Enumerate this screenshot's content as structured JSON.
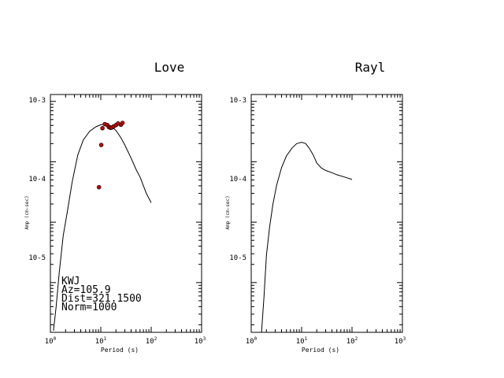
{
  "chart_data": [
    {
      "type": "line",
      "title": "Love",
      "xlabel": "Period (s)",
      "ylabel": "Amp (cm-sec)",
      "xscale": "log",
      "yscale": "log",
      "xlim": [
        1,
        1000
      ],
      "ylim": [
        1.5e-07,
        0.0013
      ],
      "xticks": [
        {
          "base": "10",
          "exp": "0"
        },
        {
          "base": "10",
          "exp": "1"
        },
        {
          "base": "10",
          "exp": "2"
        },
        {
          "base": "10",
          "exp": "3"
        }
      ],
      "yticks": [
        {
          "label": "10-3",
          "value": 0.001
        },
        {
          "label": "10-4",
          "value": 0.0001
        },
        {
          "label": "10-5",
          "value": 1e-05
        }
      ],
      "curve": {
        "x": [
          1.15,
          1.3,
          1.5,
          1.8,
          2.2,
          2.7,
          3.5,
          4.5,
          6,
          8,
          10,
          12,
          14,
          16,
          20,
          25,
          30,
          40,
          50,
          60,
          70,
          80,
          100
        ],
        "y": [
          1.6e-07,
          4e-07,
          1.5e-06,
          6e-06,
          1.6e-05,
          4.6e-05,
          0.00013,
          0.00023,
          0.00032,
          0.00038,
          0.00041,
          0.00042,
          0.00041,
          0.00039,
          0.00033,
          0.00025,
          0.00019,
          0.000115,
          7.5e-05,
          5.6e-05,
          4e-05,
          3e-05,
          2.1e-05
        ]
      },
      "points": {
        "x": [
          9.2,
          10.2,
          10.8,
          12,
          13.5,
          14.5,
          15.5,
          16.5,
          18,
          20,
          22,
          25,
          27
        ],
        "y": [
          3.8e-05,
          0.00019,
          0.00036,
          0.00042,
          0.000405,
          0.000375,
          0.000365,
          0.00037,
          0.000385,
          0.000405,
          0.00043,
          0.00041,
          0.00044
        ]
      },
      "annotations": [
        "KWJ",
        "Az=105.9",
        "Dist=321.1500",
        "Norm=1000"
      ]
    },
    {
      "type": "line",
      "title": "Rayl",
      "xlabel": "Period (s)",
      "ylabel": "Amp (cm-sec)",
      "xscale": "log",
      "yscale": "log",
      "xlim": [
        1,
        1000
      ],
      "ylim": [
        1.5e-07,
        0.0013
      ],
      "xticks": [
        {
          "base": "10",
          "exp": "0"
        },
        {
          "base": "10",
          "exp": "1"
        },
        {
          "base": "10",
          "exp": "2"
        },
        {
          "base": "10",
          "exp": "3"
        }
      ],
      "yticks": [
        {
          "label": "10-3",
          "value": 0.001
        },
        {
          "label": "10-4",
          "value": 0.0001
        },
        {
          "label": "10-5",
          "value": 1e-05
        }
      ],
      "curve": {
        "x": [
          1.6,
          1.8,
          2,
          2.3,
          2.7,
          3.2,
          4,
          5,
          6.5,
          8,
          10,
          12,
          14,
          17,
          20,
          25,
          30,
          40,
          50,
          70,
          100
        ],
        "y": [
          1.5e-07,
          6e-07,
          2.8e-06,
          8e-06,
          2e-05,
          4.1e-05,
          8e-05,
          0.000125,
          0.00017,
          0.0002,
          0.00021,
          0.0002,
          0.00017,
          0.00013,
          9.5e-05,
          7.8e-05,
          7.2e-05,
          6.6e-05,
          6.1e-05,
          5.6e-05,
          5.1e-05
        ]
      },
      "points": {
        "x": [],
        "y": []
      },
      "annotations": []
    }
  ],
  "colors": {
    "axes": "#000000",
    "curve": "#000000",
    "point_fill": "#cc0000",
    "point_stroke": "#000000"
  }
}
